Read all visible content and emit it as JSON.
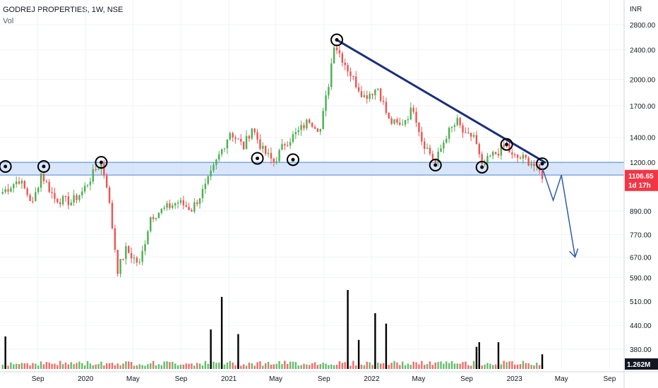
{
  "header": {
    "title": "GODREJ PROPERTIES, 1W, NSE",
    "volume_label": "Vol"
  },
  "colors": {
    "up": "#4caf50",
    "down": "#ef5350",
    "volume_highlight": "#000000",
    "trendline": "#1a2f7a",
    "support_zone_fill": "#cfe0f7",
    "support_zone_line": "#4a7fd6",
    "projection_arrow": "#2d5bb0",
    "price_tag_bg": "#f23645",
    "volume_tag_bg": "#131722",
    "grid": "#f0f3fa"
  },
  "chart_data": {
    "type": "candlestick",
    "title": "GODREJ PROPERTIES, 1W, NSE",
    "y_axis": {
      "unit": "INR",
      "scale": "log",
      "ticks": [
        "2800.00",
        "2400.00",
        "2000.00",
        "1700.00",
        "1400.00",
        "1200.00",
        "890.00",
        "770.00",
        "670.00",
        "590.00",
        "510.00",
        "440.00",
        "380.00"
      ],
      "ylim": [
        350,
        3000
      ]
    },
    "x_axis": {
      "ticks": [
        "Sep",
        "2020",
        "May",
        "Sep",
        "2021",
        "May",
        "Sep",
        "2022",
        "May",
        "Sep",
        "2023",
        "May",
        "Sep"
      ],
      "range": [
        "2019-06",
        "2023-09"
      ]
    },
    "last_price": "1106.65",
    "countdown": "1d 17h",
    "last_volume": "1.262M",
    "support_zone": [
      1110,
      1200
    ],
    "trendline": {
      "from": {
        "date": "2021-10",
        "price": 2550
      },
      "to": {
        "date": "2023-03",
        "price": 1200
      }
    },
    "series": [
      {
        "anchors": [
          [
            "2019-06-03",
            1000
          ],
          [
            "2019-07-15",
            1080
          ],
          [
            "2019-08-19",
            930
          ],
          [
            "2019-09-09",
            1120
          ],
          [
            "2019-10-14",
            960
          ],
          [
            "2019-11-25",
            940
          ],
          [
            "2019-12-23",
            1000
          ],
          [
            "2020-01-27",
            1150
          ],
          [
            "2020-02-10",
            1190
          ],
          [
            "2020-02-24",
            1050
          ],
          [
            "2020-03-23",
            620
          ],
          [
            "2020-04-13",
            700
          ],
          [
            "2020-05-18",
            640
          ],
          [
            "2020-06-15",
            860
          ],
          [
            "2020-07-20",
            900
          ],
          [
            "2020-08-24",
            940
          ],
          [
            "2020-09-28",
            900
          ],
          [
            "2020-11-02",
            1030
          ],
          [
            "2020-12-07",
            1250
          ],
          [
            "2021-01-04",
            1450
          ],
          [
            "2021-02-08",
            1320
          ],
          [
            "2021-03-01",
            1490
          ],
          [
            "2021-03-29",
            1290
          ],
          [
            "2021-04-26",
            1200
          ],
          [
            "2021-05-24",
            1350
          ],
          [
            "2021-06-28",
            1450
          ],
          [
            "2021-07-26",
            1560
          ],
          [
            "2021-08-23",
            1470
          ],
          [
            "2021-09-13",
            1950
          ],
          [
            "2021-09-27",
            2500
          ],
          [
            "2021-10-11",
            2350
          ],
          [
            "2021-11-15",
            2000
          ],
          [
            "2021-12-13",
            1800
          ],
          [
            "2022-01-17",
            1900
          ],
          [
            "2022-02-14",
            1550
          ],
          [
            "2022-03-14",
            1500
          ],
          [
            "2022-04-18",
            1680
          ],
          [
            "2022-05-09",
            1380
          ],
          [
            "2022-06-13",
            1200
          ],
          [
            "2022-07-11",
            1420
          ],
          [
            "2022-08-08",
            1540
          ],
          [
            "2022-08-29",
            1400
          ],
          [
            "2022-09-19",
            1420
          ],
          [
            "2022-10-10",
            1160
          ],
          [
            "2022-10-31",
            1240
          ],
          [
            "2022-11-28",
            1300
          ],
          [
            "2022-12-12",
            1330
          ],
          [
            "2022-12-26",
            1240
          ],
          [
            "2023-01-23",
            1230
          ],
          [
            "2023-02-13",
            1200
          ],
          [
            "2023-03-06",
            1130
          ],
          [
            "2023-03-13",
            1106.65
          ]
        ]
      }
    ],
    "volume_spikes_millions": [
      [
        "2019-06-10",
        2.8
      ],
      [
        "2020-11-16",
        3.4
      ],
      [
        "2020-12-14",
        6.2
      ],
      [
        "2021-01-25",
        3.0
      ],
      [
        "2021-11-01",
        6.8
      ],
      [
        "2021-11-29",
        2.5
      ],
      [
        "2022-01-10",
        4.8
      ],
      [
        "2022-02-07",
        3.9
      ],
      [
        "2022-09-26",
        1.9
      ],
      [
        "2022-10-03",
        2.3
      ],
      [
        "2022-11-21",
        2.3
      ],
      [
        "2023-03-13",
        1.262
      ]
    ],
    "annotations": [
      {
        "type": "circle",
        "date": "2019-06-10",
        "price": 1170
      },
      {
        "type": "circle",
        "date": "2019-09-16",
        "price": 1170
      },
      {
        "type": "circle",
        "date": "2020-02-10",
        "price": 1200
      },
      {
        "type": "circle",
        "date": "2021-03-15",
        "price": 1230
      },
      {
        "type": "circle",
        "date": "2021-06-14",
        "price": 1220
      },
      {
        "type": "circle",
        "date": "2021-10-04",
        "price": 2550
      },
      {
        "type": "circle",
        "date": "2022-06-13",
        "price": 1180
      },
      {
        "type": "circle",
        "date": "2022-10-10",
        "price": 1165
      },
      {
        "type": "circle",
        "date": "2022-12-12",
        "price": 1340
      },
      {
        "type": "circle",
        "date": "2023-03-13",
        "price": 1190
      },
      {
        "type": "arrow",
        "points": [
          [
            "2023-03-13",
            1160
          ],
          [
            "2023-04-10",
            950
          ],
          [
            "2023-05-01",
            1110
          ],
          [
            "2023-06-05",
            670
          ]
        ]
      }
    ]
  }
}
